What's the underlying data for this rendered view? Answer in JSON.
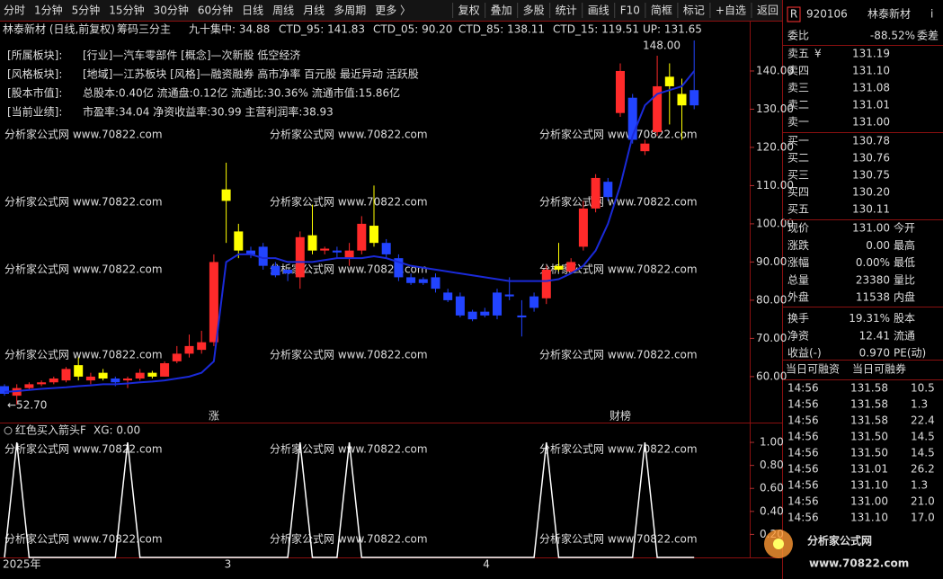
{
  "toolbar": {
    "periods": [
      "分时",
      "1分钟",
      "5分钟",
      "15分钟",
      "30分钟",
      "60分钟",
      "日线",
      "周线",
      "月线",
      "多周期",
      "更多 〉"
    ],
    "active": "日线",
    "tools": [
      "复权",
      "叠加",
      "多股",
      "统计",
      "画线",
      "F10",
      "简框",
      "标记",
      "+自选",
      "返回"
    ]
  },
  "chart": {
    "legend": [
      {
        "text": "林泰新材 (日线,前复权)",
        "color": "#c0c0c0"
      },
      {
        "text": "筹码三分主",
        "color": "#c0c0c0"
      },
      {
        "text": "九十集中: 34.88",
        "color": "#ffffff"
      },
      {
        "text": "CTD_95: 141.83",
        "color": "#ffff00"
      },
      {
        "text": "CTD_05: 90.20",
        "color": "#ff44ff"
      },
      {
        "text": "CTD_85: 138.11",
        "color": "#00e000"
      },
      {
        "text": "CTD_15: 119.51",
        "color": "#ffffff"
      },
      {
        "text": "UP: 131.65",
        "color": "#3b5bff"
      }
    ],
    "info": [
      {
        "label": "[所属板块]:",
        "text": "[行业]—汽车零部件 [概念]—次新股 低空经济",
        "color": "#ffff00"
      },
      {
        "label": "[风格板块]:",
        "text": "[地域]—江苏板块 [风格]—融资融券 高市净率 百元股 最近异动 活跃股",
        "color": "#ffff00"
      },
      {
        "label": "[股本市值]:",
        "text": "总股本:0.40亿 流通盘:0.12亿 流通比:30.36% 流通市值:15.86亿",
        "color": "#ff33ff"
      },
      {
        "label": "[当前业绩]:",
        "text": "市盈率:34.04 净资收益率:30.99 主营利润率:38.93",
        "color": "#ff33ff"
      }
    ],
    "watermark": "分析家公式网 www.70822.com",
    "price": {
      "type": "candlestick",
      "ylim": [
        51.5,
        152.7
      ],
      "yticks": [
        {
          "value": 60,
          "label": "60.00"
        },
        {
          "value": 70,
          "label": "70.00"
        },
        {
          "value": 80,
          "label": "80.00"
        },
        {
          "value": 90,
          "label": "90.00"
        },
        {
          "value": 100,
          "label": "100.00"
        },
        {
          "value": 110,
          "label": "110.00"
        },
        {
          "value": 120,
          "label": "120.00"
        },
        {
          "value": 130,
          "label": "130.00"
        },
        {
          "value": 140,
          "label": "140.00"
        }
      ],
      "categories": [
        "2025年",
        null,
        null,
        null,
        null,
        null,
        null,
        null,
        null,
        null,
        null,
        null,
        null,
        null,
        null,
        null,
        null,
        null,
        "3",
        null,
        null,
        null,
        null,
        null,
        null,
        null,
        null,
        null,
        null,
        null,
        null,
        null,
        null,
        null,
        null,
        null,
        null,
        null,
        null,
        "4",
        null,
        null,
        null,
        null,
        null,
        null,
        null,
        null,
        null,
        null,
        null,
        null,
        null,
        null,
        null,
        null,
        null
      ],
      "badges": [
        null,
        null,
        null,
        null,
        null,
        null,
        null,
        null,
        null,
        null,
        null,
        null,
        null,
        null,
        null,
        null,
        null,
        "涨",
        null,
        null,
        null,
        null,
        null,
        null,
        null,
        null,
        null,
        null,
        null,
        null,
        null,
        null,
        null,
        null,
        null,
        null,
        null,
        null,
        null,
        null,
        null,
        null,
        null,
        null,
        null,
        null,
        null,
        null,
        null,
        null,
        "财榜",
        null,
        null,
        null,
        null,
        null,
        null
      ],
      "annotations": [
        {
          "text": "148.00"
        },
        {
          "text": "←52.70"
        }
      ],
      "candles": [
        {
          "open": 57.5,
          "high": 58,
          "low": 55,
          "close": 55.5,
          "color": "#2244ff"
        },
        {
          "open": 55,
          "high": 58,
          "low": 52.7,
          "close": 57,
          "color": "#ff2a2a"
        },
        {
          "open": 57,
          "high": 58.5,
          "low": 56.5,
          "close": 58,
          "color": "#ff2a2a"
        },
        {
          "open": 58,
          "high": 59,
          "low": 57.5,
          "close": 58.5,
          "color": "#ff2a2a"
        },
        {
          "open": 58.5,
          "high": 60,
          "low": 58,
          "close": 59.5,
          "color": "#ff2a2a"
        },
        {
          "open": 59,
          "high": 62.5,
          "low": 58.5,
          "close": 62,
          "color": "#ff2a2a"
        },
        {
          "open": 60,
          "high": 65,
          "low": 59,
          "close": 63,
          "color": "#ffff00"
        },
        {
          "open": 59,
          "high": 61,
          "low": 58,
          "close": 60,
          "color": "#ff2a2a"
        },
        {
          "open": 61,
          "high": 62,
          "low": 59,
          "close": 59.5,
          "color": "#ffff00"
        },
        {
          "open": 59.5,
          "high": 60,
          "low": 57.5,
          "close": 58.5,
          "color": "#2244ff"
        },
        {
          "open": 59,
          "high": 60,
          "low": 57,
          "close": 59.5,
          "color": "#ff2a2a"
        },
        {
          "open": 59.5,
          "high": 62,
          "low": 59,
          "close": 61,
          "color": "#ff2a2a"
        },
        {
          "open": 61,
          "high": 61.5,
          "low": 59.5,
          "close": 60,
          "color": "#ffff00"
        },
        {
          "open": 60,
          "high": 64,
          "low": 60,
          "close": 63.5,
          "color": "#ff2a2a"
        },
        {
          "open": 64,
          "high": 68,
          "low": 63.5,
          "close": 66,
          "color": "#ff2a2a"
        },
        {
          "open": 66,
          "high": 71,
          "low": 65,
          "close": 68,
          "color": "#ff2a2a"
        },
        {
          "open": 67,
          "high": 72,
          "low": 66,
          "close": 69,
          "color": "#ff2a2a"
        },
        {
          "open": 69,
          "high": 92,
          "low": 68,
          "close": 90,
          "color": "#ff2a2a"
        },
        {
          "open": 106,
          "high": 116,
          "low": 95,
          "close": 109,
          "color": "#ffff00"
        },
        {
          "open": 98,
          "high": 100,
          "low": 91,
          "close": 93,
          "color": "#ffff00"
        },
        {
          "open": 93,
          "high": 94,
          "low": 91,
          "close": 92,
          "color": "#2244ff"
        },
        {
          "open": 94,
          "high": 95,
          "low": 88,
          "close": 89,
          "color": "#2244ff"
        },
        {
          "open": 89,
          "high": 90,
          "low": 86,
          "close": 86.5,
          "color": "#2244ff"
        },
        {
          "open": 88,
          "high": 88,
          "low": 85,
          "close": 87,
          "color": "#2244ff"
        },
        {
          "open": 86,
          "high": 98,
          "low": 83,
          "close": 96.5,
          "color": "#ff2a2a"
        },
        {
          "open": 97,
          "high": 105,
          "low": 92,
          "close": 93,
          "color": "#ffff00"
        },
        {
          "open": 93,
          "high": 94,
          "low": 92,
          "close": 93.5,
          "color": "#ff2a2a"
        },
        {
          "open": 93,
          "high": 94,
          "low": 91,
          "close": 92.5,
          "color": "#2244ff"
        },
        {
          "open": 91,
          "high": 95,
          "low": 89,
          "close": 93,
          "color": "#ff2a2a"
        },
        {
          "open": 93,
          "high": 102,
          "low": 92,
          "close": 100,
          "color": "#ff2a2a"
        },
        {
          "open": 99.5,
          "high": 110,
          "low": 94,
          "close": 95,
          "color": "#ffff00"
        },
        {
          "open": 95,
          "high": 96,
          "low": 91,
          "close": 92,
          "color": "#2244ff"
        },
        {
          "open": 91,
          "high": 92,
          "low": 85,
          "close": 86,
          "color": "#2244ff"
        },
        {
          "open": 86,
          "high": 87,
          "low": 84,
          "close": 84.5,
          "color": "#2244ff"
        },
        {
          "open": 85.5,
          "high": 86,
          "low": 84,
          "close": 84.5,
          "color": "#2244ff"
        },
        {
          "open": 86,
          "high": 87,
          "low": 82,
          "close": 83,
          "color": "#2244ff"
        },
        {
          "open": 82,
          "high": 83,
          "low": 79.5,
          "close": 80,
          "color": "#2244ff"
        },
        {
          "open": 81,
          "high": 82,
          "low": 75.5,
          "close": 76,
          "color": "#2244ff"
        },
        {
          "open": 77,
          "high": 77.5,
          "low": 74.5,
          "close": 75,
          "color": "#2244ff"
        },
        {
          "open": 77,
          "high": 78,
          "low": 75.5,
          "close": 76,
          "color": "#2244ff"
        },
        {
          "open": 82,
          "high": 83,
          "low": 75,
          "close": 76,
          "color": "#2244ff"
        },
        {
          "open": 81.5,
          "high": 86,
          "low": 80,
          "close": 81,
          "color": "#2244ff"
        },
        {
          "open": 75.5,
          "high": 80,
          "low": 70.5,
          "close": 76,
          "color": "#2244ff"
        },
        {
          "open": 81,
          "high": 82,
          "low": 77,
          "close": 78,
          "color": "#2244ff"
        },
        {
          "open": 80.5,
          "high": 89,
          "low": 79,
          "close": 88,
          "color": "#ff2a2a"
        },
        {
          "open": 89,
          "high": 95,
          "low": 87.5,
          "close": 88,
          "color": "#ffff00"
        },
        {
          "open": 87.5,
          "high": 91,
          "low": 87,
          "close": 90,
          "color": "#ff2a2a"
        },
        {
          "open": 94,
          "high": 106,
          "low": 93,
          "close": 104,
          "color": "#ff2a2a"
        },
        {
          "open": 104,
          "high": 113,
          "low": 103,
          "close": 112,
          "color": "#ff2a2a"
        },
        {
          "open": 111,
          "high": 112,
          "low": 106,
          "close": 107,
          "color": "#2244ff"
        },
        {
          "open": 129,
          "high": 142,
          "low": 128,
          "close": 140,
          "color": "#ff2a2a"
        },
        {
          "open": 133,
          "high": 134,
          "low": 121,
          "close": 122,
          "color": "#2244ff"
        },
        {
          "open": 119,
          "high": 122,
          "low": 118,
          "close": 121,
          "color": "#ff2a2a"
        },
        {
          "open": 124,
          "high": 144,
          "low": 123,
          "close": 136,
          "color": "#ff2a2a"
        },
        {
          "open": 136,
          "high": 142,
          "low": 126,
          "close": 138.5,
          "color": "#ffff00"
        },
        {
          "open": 134,
          "high": 138,
          "low": 122,
          "close": 131,
          "color": "#ffff00"
        },
        {
          "open": 135,
          "high": 148,
          "low": 130,
          "close": 131,
          "color": "#2244ff"
        }
      ],
      "line": {
        "color": "#1a2ad8",
        "values": [
          56,
          56.2,
          56.5,
          56.8,
          57,
          57.2,
          57.5,
          57.7,
          58,
          58,
          58.2,
          58.5,
          58.7,
          59,
          59.5,
          60,
          61,
          64,
          90,
          92,
          92,
          91,
          91,
          90,
          90,
          90,
          90.5,
          91,
          91,
          91,
          91.5,
          91,
          90,
          89,
          88.5,
          88,
          87.5,
          87,
          86.5,
          86,
          85.5,
          85,
          85,
          85,
          85,
          85.5,
          87,
          89,
          93,
          100,
          110,
          123,
          131,
          134,
          135,
          136,
          140
        ]
      }
    },
    "indicator": {
      "title": "红色买入箭头F",
      "reading": "XG: 0.00",
      "ylim": [
        0,
        1.055
      ],
      "yticks": [
        {
          "value": 1,
          "label": "1.00"
        },
        {
          "value": 0.8,
          "label": "0.80"
        },
        {
          "value": 0.6,
          "label": "0.60"
        },
        {
          "value": 0.4,
          "label": "0.40"
        },
        {
          "value": 0.2,
          "label": "0.20"
        }
      ],
      "values": [
        0,
        1,
        0,
        0,
        0,
        0,
        0,
        0,
        0,
        0,
        1,
        0,
        0,
        0,
        0,
        0,
        0,
        0,
        0,
        0,
        0,
        0,
        0,
        0,
        1,
        0,
        0,
        0,
        1,
        0,
        0,
        0,
        0,
        0,
        0,
        0,
        0,
        0,
        0,
        0,
        0,
        0,
        0,
        0,
        1,
        0,
        0,
        0,
        0,
        0,
        0,
        0,
        1,
        0,
        0,
        0,
        0
      ]
    }
  },
  "quote": {
    "flag": "R",
    "code": "920106",
    "name": "林泰新材",
    "info": "i",
    "weibi": {
      "label": "委比",
      "value": "-88.52%",
      "label2": "委差"
    },
    "currency": "¥",
    "asks": [
      {
        "label": "卖五",
        "price": "131.19",
        "color": "#ff3232"
      },
      {
        "label": "卖四",
        "price": "131.10",
        "color": "#ff3232"
      },
      {
        "label": "卖三",
        "price": "131.08",
        "color": "#ff3232"
      },
      {
        "label": "卖二",
        "price": "131.01",
        "color": "#ff3232"
      },
      {
        "label": "卖一",
        "price": "131.00",
        "color": "#e0e0e0"
      }
    ],
    "bids": [
      {
        "label": "买一",
        "price": "130.78",
        "color": "#00e000"
      },
      {
        "label": "买二",
        "price": "130.76",
        "color": "#00e000"
      },
      {
        "label": "买三",
        "price": "130.75",
        "color": "#00e000"
      },
      {
        "label": "买四",
        "price": "130.20",
        "color": "#00e000"
      },
      {
        "label": "买五",
        "price": "130.11",
        "color": "#00e000"
      }
    ],
    "stats": [
      {
        "label": "现价",
        "value": "131.00",
        "label2": "今开",
        "color": "#e0e0e0"
      },
      {
        "label": "涨跌",
        "value": "0.00",
        "label2": "最高",
        "color": "#e0e0e0"
      },
      {
        "label": "涨幅",
        "value": "0.00%",
        "label2": "最低",
        "color": "#e0e0e0"
      },
      {
        "label": "总量",
        "value": "23380",
        "label2": "量比",
        "color": "#ffcc00"
      },
      {
        "label": "外盘",
        "value": "11538",
        "label2": "内盘",
        "color": "#ff3232"
      },
      {
        "label": "换手",
        "value": "19.31%",
        "label2": "股本",
        "color": "#e0e0e0"
      },
      {
        "label": "净资",
        "value": "12.41",
        "label2": "流通",
        "color": "#e0e0e0"
      },
      {
        "label": "收益(-)",
        "value": "0.970",
        "label2": "PE(动)",
        "color": "#e0e0e0"
      }
    ],
    "margin": [
      "当日可融资",
      "当日可融券"
    ],
    "trades": [
      {
        "time": "14:56",
        "price": "131.58",
        "vol": "10.5",
        "color": "#ff3232"
      },
      {
        "time": "14:56",
        "price": "131.58",
        "vol": "1.3",
        "color": "#ff3232"
      },
      {
        "time": "14:56",
        "price": "131.58",
        "vol": "22.4",
        "color": "#ff3232"
      },
      {
        "time": "14:56",
        "price": "131.50",
        "vol": "14.5",
        "color": "#ff3232"
      },
      {
        "time": "14:56",
        "price": "131.50",
        "vol": "14.5",
        "color": "#ff3232"
      },
      {
        "time": "14:56",
        "price": "131.01",
        "vol": "26.2",
        "color": "#ff3232"
      },
      {
        "time": "14:56",
        "price": "131.10",
        "vol": "1.3",
        "color": "#ff3232"
      },
      {
        "time": "14:56",
        "price": "131.00",
        "vol": "21.0",
        "color": "#e0e0e0"
      },
      {
        "time": "14:56",
        "price": "131.10",
        "vol": "17.0",
        "color": "#ff3232"
      }
    ],
    "logo": {
      "title": "分析家公式网",
      "url": "www.70822.com"
    }
  }
}
